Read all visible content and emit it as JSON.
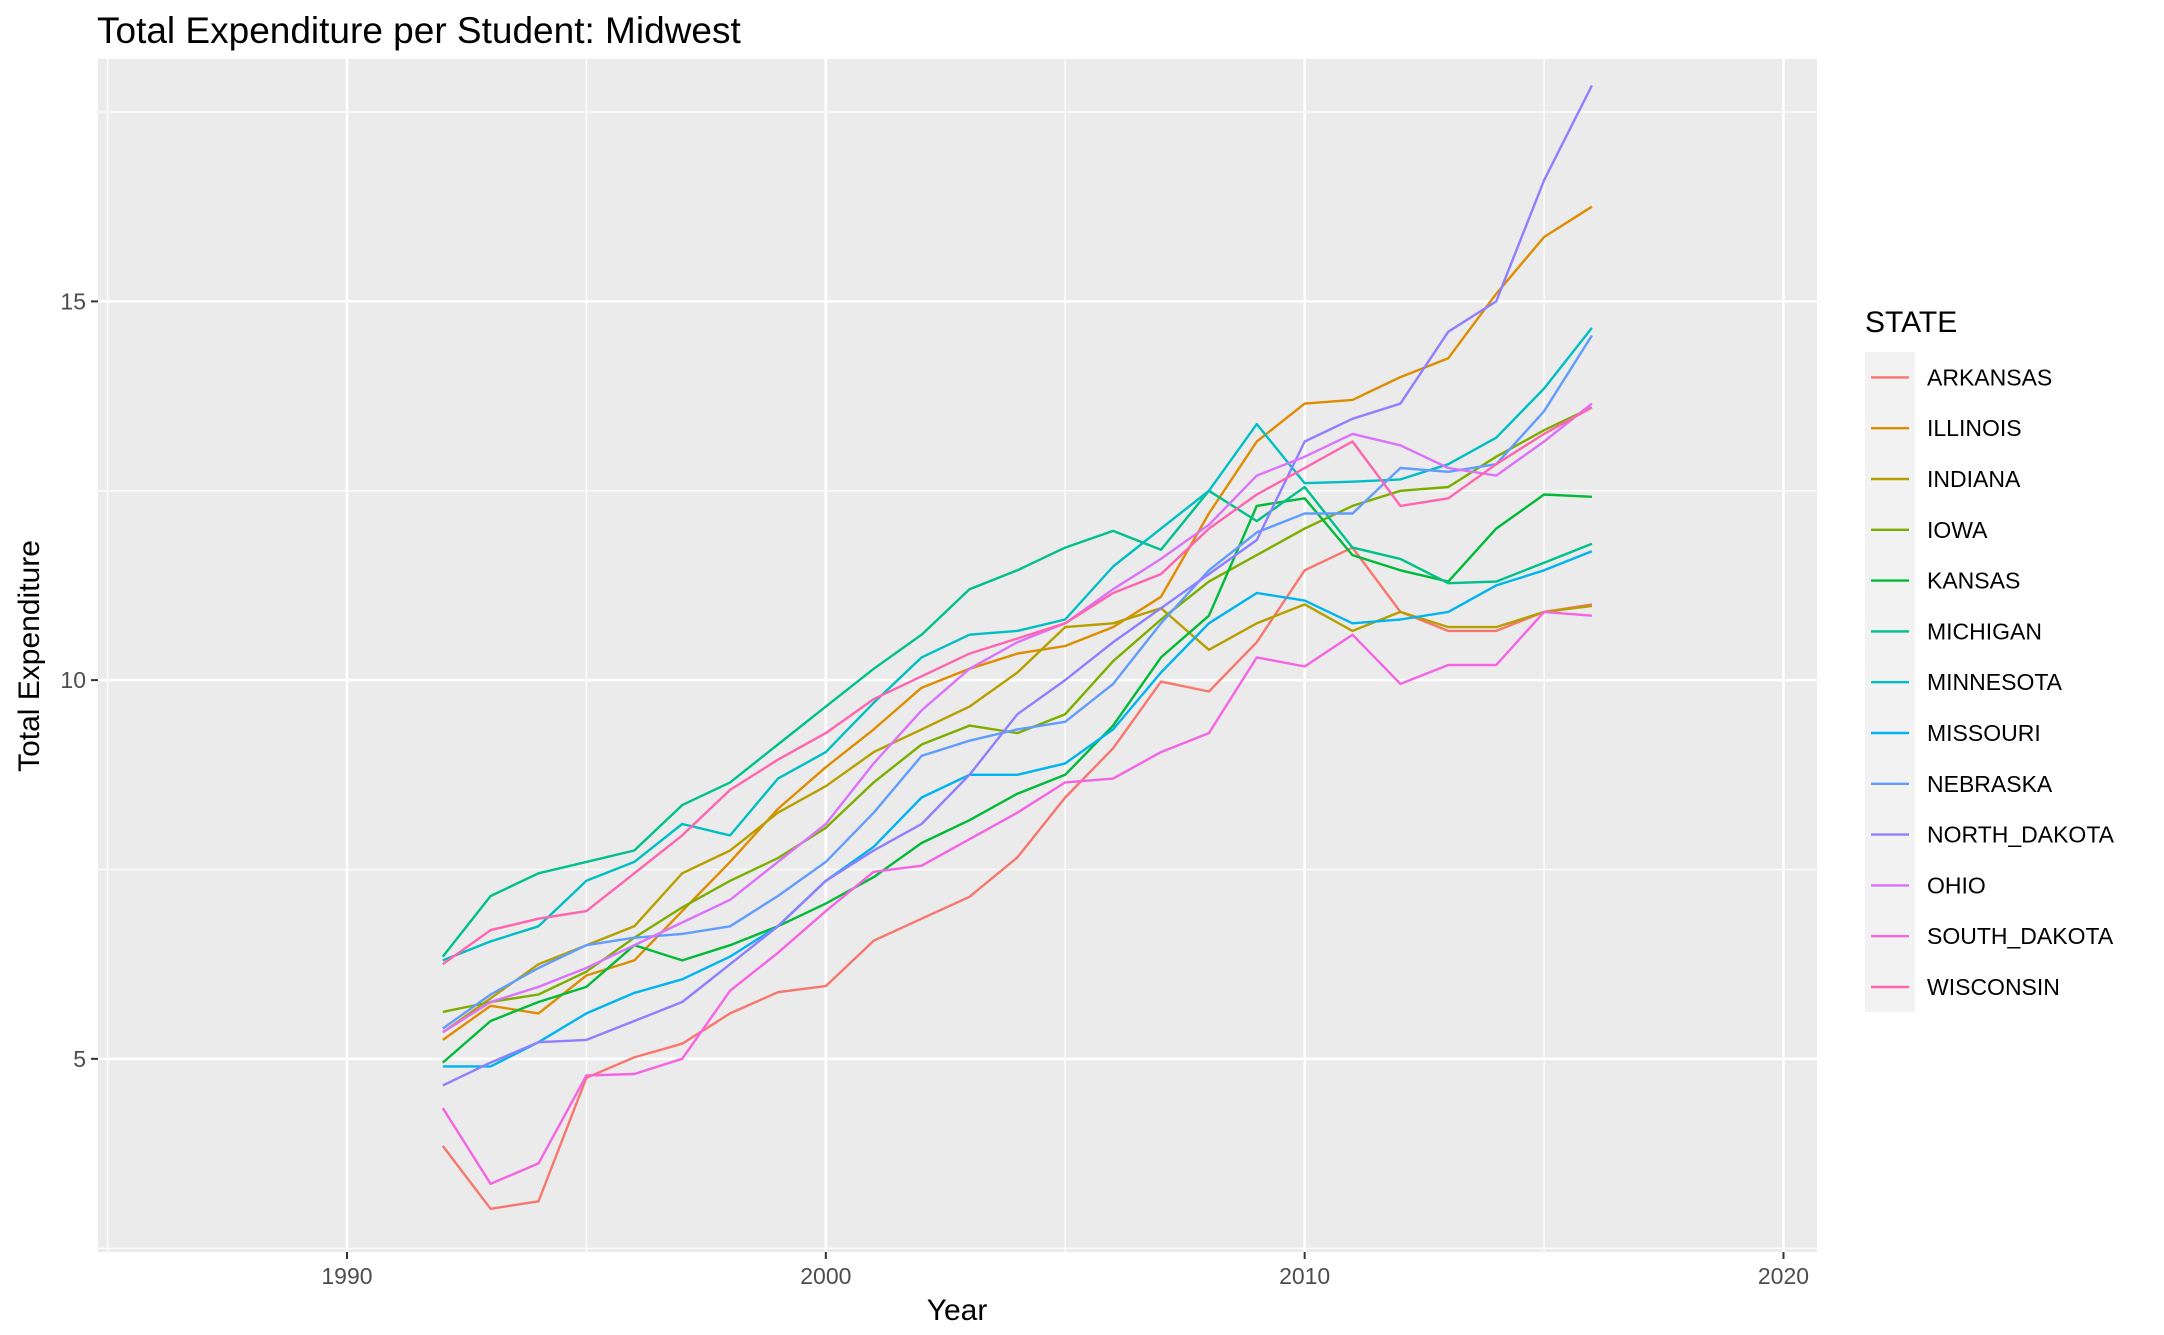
{
  "chart_data": {
    "type": "line",
    "title": "Total Expenditure per Student: Midwest",
    "xlabel": "Year",
    "ylabel": "Total Expenditure",
    "xlim": [
      1984.8,
      2020.7
    ],
    "ylim": [
      2.45,
      18.2
    ],
    "x_ticks": [
      1990,
      2000,
      2010,
      2020
    ],
    "x_tick_labels": [
      "1990",
      "2000",
      "2010",
      "2020"
    ],
    "y_ticks": [
      5,
      10,
      15
    ],
    "y_tick_labels": [
      "5",
      "10",
      "15"
    ],
    "y_minor_ticks": [
      2.5,
      7.5,
      12.5,
      17.5
    ],
    "x_minor_ticks": [
      1985,
      1995,
      2005,
      2015
    ],
    "grid": true,
    "legend_title": "STATE",
    "legend_position": "right",
    "x": [
      1992,
      1993,
      1994,
      1995,
      1996,
      1997,
      1998,
      1999,
      2000,
      2001,
      2002,
      2003,
      2004,
      2005,
      2006,
      2007,
      2008,
      2009,
      2010,
      2011,
      2012,
      2013,
      2014,
      2015,
      2016
    ],
    "series": [
      {
        "name": "ARKANSAS",
        "color": "#F8766D",
        "values": [
          3.85,
          3.02,
          3.12,
          4.75,
          5.02,
          5.2,
          5.6,
          5.88,
          5.96,
          6.56,
          6.85,
          7.14,
          7.66,
          8.45,
          9.1,
          9.98,
          9.85,
          10.5,
          11.45,
          11.75,
          10.9,
          10.65,
          10.65,
          10.9,
          11.0
        ]
      },
      {
        "name": "ILLINOIS",
        "color": "#DE8C00",
        "values": [
          5.25,
          5.7,
          5.6,
          6.1,
          6.3,
          6.95,
          7.6,
          8.3,
          8.85,
          9.35,
          9.9,
          10.15,
          10.35,
          10.45,
          10.7,
          11.1,
          12.2,
          13.15,
          13.65,
          13.7,
          14.0,
          14.25,
          15.1,
          15.85,
          16.25
        ]
      },
      {
        "name": "INDIANA",
        "color": "#B79F00",
        "values": [
          5.35,
          5.8,
          6.25,
          6.5,
          6.75,
          7.45,
          7.75,
          8.25,
          8.6,
          9.05,
          9.35,
          9.65,
          10.1,
          10.7,
          10.75,
          10.95,
          10.4,
          10.75,
          11.0,
          10.65,
          10.9,
          10.7,
          10.7,
          10.9,
          10.98
        ]
      },
      {
        "name": "IOWA",
        "color": "#7CAE00",
        "values": [
          5.62,
          5.75,
          5.85,
          6.15,
          6.6,
          7.0,
          7.35,
          7.65,
          8.05,
          8.65,
          9.15,
          9.4,
          9.3,
          9.55,
          10.25,
          10.8,
          11.3,
          11.65,
          12.0,
          12.3,
          12.5,
          12.55,
          12.95,
          13.3,
          13.6
        ]
      },
      {
        "name": "KANSAS",
        "color": "#00BA38",
        "values": [
          4.95,
          5.5,
          5.75,
          5.95,
          6.5,
          6.3,
          6.5,
          6.75,
          7.05,
          7.4,
          7.85,
          8.15,
          8.5,
          8.75,
          9.4,
          10.3,
          10.85,
          12.3,
          12.4,
          11.65,
          11.45,
          11.3,
          12.0,
          12.45,
          12.42
        ]
      },
      {
        "name": "MICHIGAN",
        "color": "#00C08B",
        "values": [
          6.35,
          7.15,
          7.45,
          7.6,
          7.75,
          8.35,
          8.65,
          9.15,
          9.65,
          10.15,
          10.6,
          11.2,
          11.45,
          11.75,
          11.97,
          11.72,
          12.5,
          12.1,
          12.55,
          11.75,
          11.6,
          11.28,
          11.3,
          11.55,
          11.8
        ]
      },
      {
        "name": "MINNESOTA",
        "color": "#00BFC4",
        "values": [
          6.3,
          6.55,
          6.75,
          7.35,
          7.6,
          8.1,
          7.95,
          8.7,
          9.05,
          9.7,
          10.3,
          10.6,
          10.65,
          10.8,
          11.5,
          12.0,
          12.5,
          13.38,
          12.6,
          12.62,
          12.65,
          12.85,
          13.2,
          13.85,
          14.65
        ]
      },
      {
        "name": "MISSOURI",
        "color": "#00B4F0",
        "values": [
          4.9,
          4.9,
          5.22,
          5.6,
          5.87,
          6.05,
          6.35,
          6.75,
          7.35,
          7.8,
          8.45,
          8.75,
          8.75,
          8.9,
          9.35,
          10.1,
          10.75,
          11.15,
          11.05,
          10.75,
          10.8,
          10.9,
          11.25,
          11.45,
          11.7
        ]
      },
      {
        "name": "NEBRASKA",
        "color": "#619CFF",
        "values": [
          5.4,
          5.85,
          6.2,
          6.5,
          6.6,
          6.65,
          6.75,
          7.15,
          7.6,
          8.25,
          9.0,
          9.2,
          9.35,
          9.45,
          9.95,
          10.75,
          11.45,
          11.95,
          12.2,
          12.2,
          12.8,
          12.75,
          12.85,
          13.55,
          14.55
        ]
      },
      {
        "name": "NORTH_DAKOTA",
        "color": "#8F7FFF",
        "values": [
          4.65,
          4.95,
          5.22,
          5.25,
          5.5,
          5.75,
          6.25,
          6.75,
          7.35,
          7.75,
          8.1,
          8.75,
          9.55,
          10.0,
          10.5,
          10.95,
          11.4,
          11.85,
          13.15,
          13.45,
          13.65,
          14.6,
          15.0,
          16.6,
          17.85
        ]
      },
      {
        "name": "OHIO",
        "color": "#DB72FB",
        "values": [
          5.35,
          5.75,
          5.95,
          6.2,
          6.5,
          6.8,
          7.1,
          7.6,
          8.1,
          8.9,
          9.6,
          10.15,
          10.5,
          10.75,
          11.2,
          11.6,
          12.05,
          12.7,
          12.95,
          13.25,
          13.1,
          12.8,
          12.7,
          13.15,
          13.65
        ]
      },
      {
        "name": "SOUTH_DAKOTA",
        "color": "#F564E3",
        "values": [
          4.35,
          3.35,
          3.62,
          4.78,
          4.8,
          5.0,
          5.9,
          6.4,
          6.95,
          7.47,
          7.55,
          7.9,
          8.25,
          8.65,
          8.7,
          9.05,
          9.3,
          10.3,
          10.18,
          10.6,
          9.95,
          10.2,
          10.2,
          10.9,
          10.85
        ]
      },
      {
        "name": "WISCONSIN",
        "color": "#FF64B0",
        "values": [
          6.25,
          6.7,
          6.85,
          6.95,
          7.45,
          7.95,
          8.55,
          8.95,
          9.3,
          9.75,
          10.05,
          10.35,
          10.55,
          10.75,
          11.15,
          11.4,
          12.0,
          12.45,
          12.8,
          13.15,
          12.3,
          12.4,
          12.85,
          13.25,
          13.6
        ]
      }
    ]
  }
}
